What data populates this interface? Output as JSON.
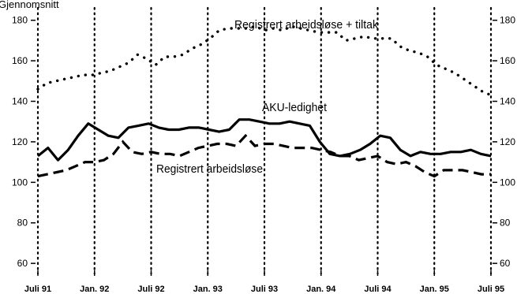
{
  "chart_data": {
    "type": "line",
    "unit_label": "Gjennomsnitt",
    "ylim": [
      55,
      190
    ],
    "y_ticks": [
      60,
      80,
      100,
      120,
      140,
      160,
      180
    ],
    "x_ticks": [
      "Juli 91",
      "Jan. 92",
      "Juli 92",
      "Jan. 93",
      "Juli 93",
      "Jan. 94",
      "Juli 94",
      "Jan. 95",
      "Juli 95"
    ],
    "grid": "vertical dotted at x ticks",
    "series": [
      {
        "name": "Registrert arbeidsløse + tiltak",
        "style": "dotted",
        "values": [
          146,
          149,
          150,
          151,
          152,
          153,
          153,
          154,
          155,
          157,
          159,
          163,
          161,
          158,
          162,
          162,
          163,
          166,
          168,
          171,
          175,
          176,
          176,
          176,
          177,
          175,
          176,
          175,
          177,
          176,
          175,
          174,
          174,
          174,
          170,
          171,
          172,
          171,
          171,
          171,
          167,
          165,
          164,
          162,
          158,
          156,
          154,
          151,
          148,
          145,
          143
        ]
      },
      {
        "name": "AKU-ledighet",
        "style": "solid",
        "values": [
          113,
          117,
          111,
          116,
          123,
          129,
          126,
          123,
          122,
          127,
          128,
          129,
          127,
          126,
          126,
          127,
          127,
          126,
          125,
          126,
          131,
          131,
          130,
          129,
          129,
          130,
          129,
          128,
          120,
          114,
          113,
          114,
          116,
          119,
          123,
          122,
          116,
          113,
          115,
          114,
          114,
          115,
          115,
          116,
          114,
          113
        ]
      },
      {
        "name": "Registrert arbeidsløse",
        "style": "dashed",
        "values": [
          103,
          104,
          105,
          106,
          108,
          110,
          110,
          111,
          114,
          120,
          115,
          114,
          115,
          114,
          114,
          113,
          115,
          117,
          118,
          119,
          119,
          118,
          123,
          118,
          119,
          119,
          118,
          117,
          117,
          117,
          116,
          115,
          113,
          113,
          111,
          112,
          113,
          110,
          109,
          110,
          108,
          105,
          103,
          106,
          106,
          106,
          105,
          104,
          104
        ]
      }
    ],
    "annotations": [
      {
        "text": "Registrert arbeidsløse + tiltak"
      },
      {
        "text": "AKU-ledighet"
      },
      {
        "text": "Registrert arbeidsløse"
      }
    ]
  }
}
